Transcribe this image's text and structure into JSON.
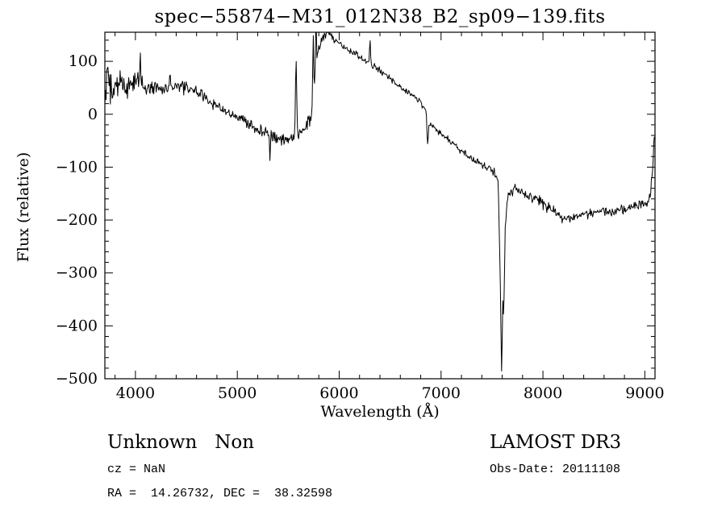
{
  "chart_data": {
    "type": "line",
    "title": "spec−55874−M31_012N38_B2_sp09−139.fits",
    "xlabel": "Wavelength (Å)",
    "ylabel": "Flux (relative)",
    "xlim": [
      3700,
      9100
    ],
    "ylim": [
      -500,
      155
    ],
    "xticks": [
      4000,
      5000,
      6000,
      7000,
      8000,
      9000
    ],
    "yticks": [
      100,
      0,
      -100,
      -200,
      -300,
      -400,
      -500
    ],
    "x_minor_step": 200,
    "y_minor_step": 20,
    "grid": false,
    "legend": "none",
    "colors": {
      "background": "#ffffff",
      "line": "#000000"
    },
    "series": [
      {
        "name": "spectrum",
        "x": [
          3700,
          3720,
          3760,
          3800,
          3850,
          3900,
          3950,
          4000,
          4050,
          4100,
          4200,
          4300,
          4400,
          4500,
          4600,
          4700,
          4800,
          4900,
          5000,
          5100,
          5200,
          5300,
          5400,
          5500,
          5560,
          5600,
          5650,
          5700,
          5730,
          5760,
          5790,
          5820,
          5850,
          5880,
          5910,
          5940,
          5970,
          6000,
          6050,
          6100,
          6200,
          6300,
          6400,
          6500,
          6600,
          6700,
          6800,
          6850,
          6880,
          6920,
          7000,
          7100,
          7200,
          7300,
          7400,
          7500,
          7540,
          7560,
          7580,
          7595,
          7605,
          7615,
          7630,
          7650,
          7680,
          7720,
          7800,
          7900,
          8000,
          8100,
          8200,
          8300,
          8400,
          8500,
          8600,
          8700,
          8800,
          8900,
          9000,
          9040,
          9070,
          9090
        ],
        "y": [
          10,
          40,
          55,
          45,
          60,
          50,
          60,
          55,
          65,
          50,
          52,
          45,
          48,
          50,
          42,
          30,
          15,
          5,
          -5,
          -15,
          -28,
          -38,
          -45,
          -50,
          -45,
          -40,
          -30,
          -15,
          0,
          60,
          110,
          140,
          150,
          152,
          150,
          145,
          138,
          132,
          126,
          120,
          108,
          95,
          82,
          68,
          52,
          38,
          22,
          10,
          -15,
          -25,
          -35,
          -52,
          -70,
          -85,
          -95,
          -105,
          -115,
          -130,
          -300,
          -500,
          -350,
          -390,
          -220,
          -160,
          -145,
          -140,
          -150,
          -158,
          -168,
          -182,
          -198,
          -195,
          -190,
          -186,
          -180,
          -184,
          -179,
          -176,
          -172,
          -168,
          -120,
          -45
        ]
      }
    ],
    "noise_profile": {
      "x": [
        3700,
        3750,
        3800,
        3900,
        4000,
        4200,
        4600,
        5000,
        5400,
        5600,
        5800,
        6000,
        6500,
        7000,
        7500,
        7700,
        8000,
        8500,
        9000,
        9090
      ],
      "amp": [
        45,
        38,
        25,
        20,
        16,
        13,
        11,
        10,
        11,
        13,
        10,
        6,
        6,
        6,
        7,
        9,
        9,
        9,
        9,
        12
      ]
    },
    "spikes": [
      {
        "x": 3728,
        "amp": 70,
        "w": 6
      },
      {
        "x": 4046,
        "amp": 55,
        "w": 5
      },
      {
        "x": 4340,
        "amp": 35,
        "w": 5
      },
      {
        "x": 5320,
        "amp": -45,
        "w": 5
      },
      {
        "x": 5577,
        "amp": 145,
        "w": 9
      },
      {
        "x": 5745,
        "amp": 130,
        "w": 6
      },
      {
        "x": 5772,
        "amp": 150,
        "w": 6
      },
      {
        "x": 5890,
        "amp": 40,
        "w": 5
      },
      {
        "x": 6302,
        "amp": 45,
        "w": 6
      },
      {
        "x": 6868,
        "amp": -55,
        "w": 9
      }
    ]
  },
  "annotations": {
    "class_label": "Unknown   Non",
    "cz": "cz = NaN",
    "radec": "RA =  14.26732, DEC =  38.32598",
    "survey": "LAMOST DR3",
    "obsdate": "Obs-Date: 20111108"
  }
}
